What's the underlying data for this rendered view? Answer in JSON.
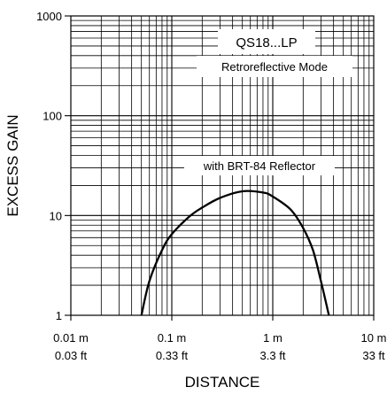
{
  "chart_data": {
    "type": "line",
    "title": "QS18...LP",
    "subtitle": "Retroreflective Mode",
    "annotation": "with BRT-84 Reflector",
    "xlabel": "DISTANCE",
    "ylabel": "EXCESS GAIN",
    "xscale": "log",
    "yscale": "log",
    "xlim": [
      0.01,
      10
    ],
    "ylim": [
      1,
      1000
    ],
    "grid": true,
    "x_ticks": [
      {
        "value": 0.01,
        "metric": "0.01 m",
        "imperial": "0.03 ft"
      },
      {
        "value": 0.1,
        "metric": "0.1 m",
        "imperial": "0.33 ft"
      },
      {
        "value": 1,
        "metric": "1 m",
        "imperial": "3.3 ft"
      },
      {
        "value": 10,
        "metric": "10 m",
        "imperial": "33 ft"
      }
    ],
    "y_ticks": [
      {
        "value": 1,
        "label": "1"
      },
      {
        "value": 10,
        "label": "10"
      },
      {
        "value": 100,
        "label": "100"
      },
      {
        "value": 1000,
        "label": "1000"
      }
    ],
    "series": [
      {
        "color": "#000000",
        "x": [
          0.05,
          0.06,
          0.08,
          0.1,
          0.15,
          0.2,
          0.3,
          0.5,
          0.8,
          1.0,
          1.5,
          2.0,
          2.5,
          3.0,
          3.6
        ],
        "y": [
          1,
          2.2,
          4.5,
          6.5,
          9.8,
          12,
          15,
          17.5,
          17,
          15.5,
          11.5,
          7.5,
          4.5,
          2.2,
          1
        ]
      }
    ]
  }
}
